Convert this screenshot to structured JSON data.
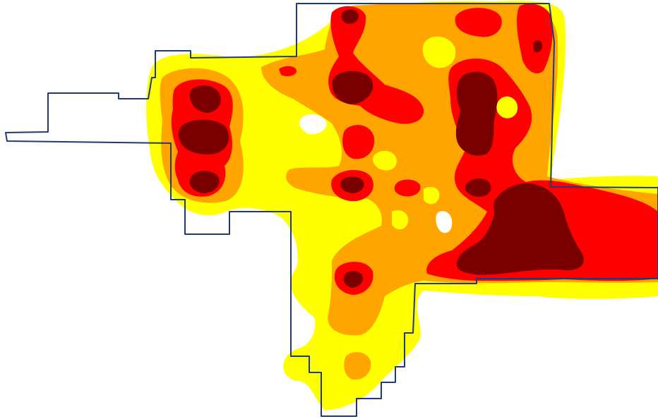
{
  "map": {
    "type": "density-heatmap",
    "palette": {
      "background": "#ffffff",
      "level_1": "#ffff00",
      "level_2": "#ffa500",
      "level_3": "#ff0000",
      "level_4": "#7a0000",
      "boundary": "#1f3a7a"
    },
    "levels": [
      "level_1",
      "level_2",
      "level_3",
      "level_4"
    ],
    "legend": null,
    "has_boundary_outline": true
  }
}
